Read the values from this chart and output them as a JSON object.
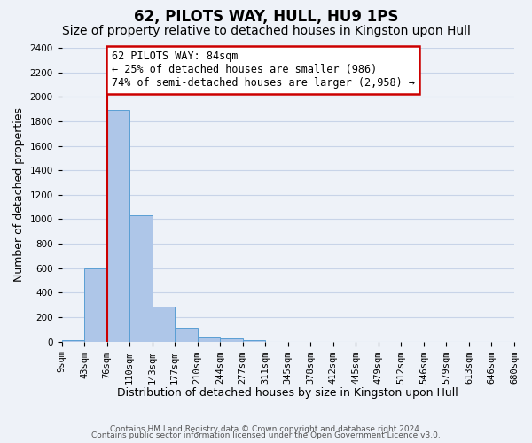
{
  "title": "62, PILOTS WAY, HULL, HU9 1PS",
  "subtitle": "Size of property relative to detached houses in Kingston upon Hull",
  "xlabel": "Distribution of detached houses by size in Kingston upon Hull",
  "ylabel": "Number of detached properties",
  "footer_line1": "Contains HM Land Registry data © Crown copyright and database right 2024.",
  "footer_line2": "Contains public sector information licensed under the Open Government Licence v3.0.",
  "bin_labels": [
    "9sqm",
    "43sqm",
    "76sqm",
    "110sqm",
    "143sqm",
    "177sqm",
    "210sqm",
    "244sqm",
    "277sqm",
    "311sqm",
    "345sqm",
    "378sqm",
    "412sqm",
    "445sqm",
    "479sqm",
    "512sqm",
    "546sqm",
    "579sqm",
    "613sqm",
    "646sqm",
    "680sqm"
  ],
  "bar_values": [
    15,
    600,
    1890,
    1030,
    290,
    115,
    40,
    25,
    15,
    0,
    0,
    0,
    0,
    0,
    0,
    0,
    0,
    0,
    0,
    0
  ],
  "bar_color": "#aec6e8",
  "bar_edge_color": "#5a9fd4",
  "property_vline_x": 2,
  "vline_color": "#cc0000",
  "annotation_text": "62 PILOTS WAY: 84sqm\n← 25% of detached houses are smaller (986)\n74% of semi-detached houses are larger (2,958) →",
  "annotation_box_facecolor": "#ffffff",
  "annotation_box_edgecolor": "#cc0000",
  "ylim_max": 2400,
  "yticks": [
    0,
    200,
    400,
    600,
    800,
    1000,
    1200,
    1400,
    1600,
    1800,
    2000,
    2200,
    2400
  ],
  "grid_color": "#c8d4e8",
  "bg_color": "#eef2f8",
  "title_fontsize": 12,
  "subtitle_fontsize": 10,
  "ylabel_fontsize": 9,
  "xlabel_fontsize": 9,
  "tick_fontsize": 7.5,
  "annot_fontsize": 8.5,
  "footer_fontsize": 6.5
}
